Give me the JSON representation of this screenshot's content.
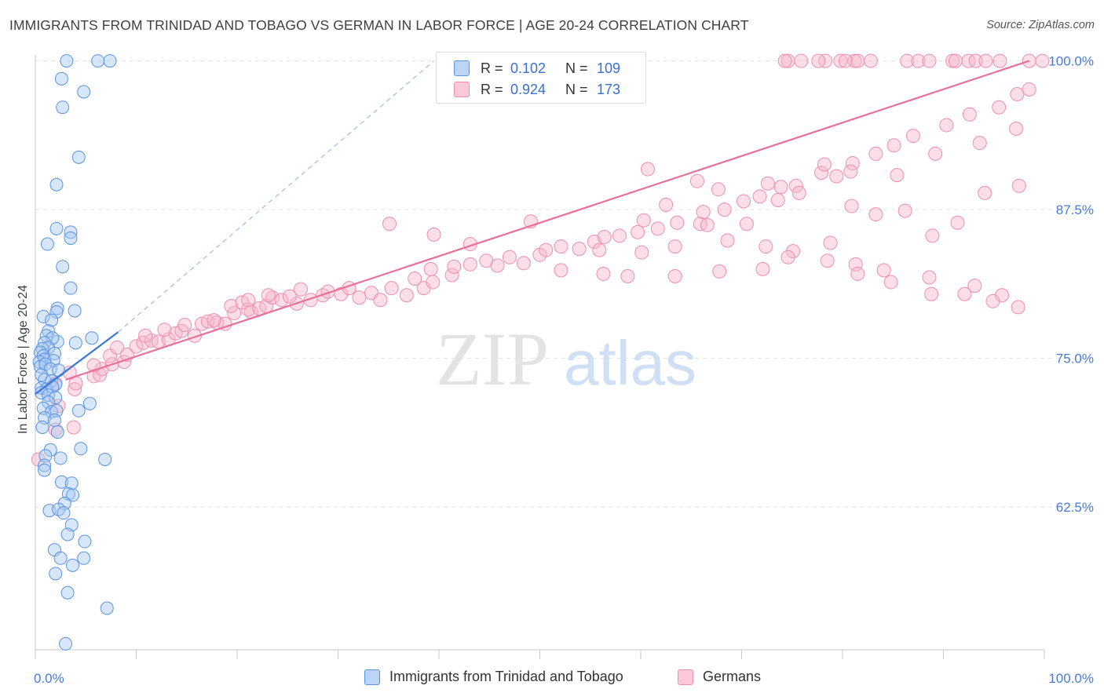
{
  "title": "IMMIGRANTS FROM TRINIDAD AND TOBAGO VS GERMAN IN LABOR FORCE | AGE 20-24 CORRELATION CHART",
  "source": "Source: ZipAtlas.com",
  "watermark": {
    "zip": "ZIP",
    "atlas": "atlas"
  },
  "legend": {
    "rows": [
      {
        "r_label": "R =",
        "r_value": "0.102",
        "n_label": "N =",
        "n_value": "109",
        "color": "#a9c8f5"
      },
      {
        "r_label": "R =",
        "r_value": "0.924",
        "n_label": "N =",
        "n_value": "173",
        "color": "#f7b6ca"
      }
    ]
  },
  "bottom_legend": {
    "items": [
      {
        "label": "Immigrants from Trinidad and Tobago",
        "color": "#a9c8f5"
      },
      {
        "label": "Germans",
        "color": "#f7b6ca"
      }
    ]
  },
  "colors": {
    "blue": "#5b93e0",
    "blue_line": "#3a78d6",
    "pink": "#ee8fb0",
    "pink_line": "#e8709a",
    "tick": "#4a7bd0"
  },
  "chart_data": {
    "type": "scatter",
    "xlabel": "",
    "ylabel": "In Labor Force | Age 20-24",
    "xlim": [
      0,
      100
    ],
    "ylim": [
      50.5,
      100.5
    ],
    "x_tick_labels": [
      {
        "x": 0,
        "label": "0.0%"
      },
      {
        "x": 100,
        "label": "100.0%"
      }
    ],
    "y_tick_labels": [
      {
        "y": 62.5,
        "label": "62.5%"
      },
      {
        "y": 75.0,
        "label": "75.0%"
      },
      {
        "y": 87.5,
        "label": "87.5%"
      },
      {
        "y": 100.0,
        "label": "100.0%"
      }
    ],
    "grid": true,
    "series": [
      {
        "name": "Immigrants from Trinidad and Tobago",
        "color": "#5b93e0",
        "trend": {
          "x": [
            0,
            8.2
          ],
          "y": [
            72.0,
            77.2
          ],
          "dashed_extension_to": [
            39.5,
            100
          ]
        },
        "points": [
          [
            3.1,
            100
          ],
          [
            6.2,
            100
          ],
          [
            7.4,
            100
          ],
          [
            2.6,
            98.5
          ],
          [
            4.8,
            97.4
          ],
          [
            2.7,
            96.1
          ],
          [
            4.3,
            91.9
          ],
          [
            2.1,
            89.6
          ],
          [
            2.1,
            85.9
          ],
          [
            3.5,
            85.6
          ],
          [
            1.2,
            84.6
          ],
          [
            3.5,
            85.1
          ],
          [
            2.7,
            82.7
          ],
          [
            3.5,
            80.9
          ],
          [
            2.2,
            79.2
          ],
          [
            2.1,
            78.9
          ],
          [
            3.9,
            79.0
          ],
          [
            0.8,
            78.5
          ],
          [
            1.6,
            78.2
          ],
          [
            1.3,
            77.3
          ],
          [
            1.1,
            76.9
          ],
          [
            5.6,
            76.7
          ],
          [
            4.0,
            76.3
          ],
          [
            2.2,
            76.4
          ],
          [
            1.7,
            76.7
          ],
          [
            0.9,
            76.3
          ],
          [
            1.3,
            75.9
          ],
          [
            0.7,
            75.8
          ],
          [
            0.5,
            75.5
          ],
          [
            0.8,
            75.2
          ],
          [
            1.9,
            75.4
          ],
          [
            0.9,
            74.9
          ],
          [
            1.8,
            74.8
          ],
          [
            0.4,
            74.7
          ],
          [
            0.5,
            74.3
          ],
          [
            1.0,
            74.5
          ],
          [
            1.5,
            74.1
          ],
          [
            2.3,
            74.0
          ],
          [
            0.6,
            73.6
          ],
          [
            0.9,
            73.2
          ],
          [
            1.6,
            73.1
          ],
          [
            2.0,
            72.8
          ],
          [
            0.6,
            72.5
          ],
          [
            1.1,
            72.4
          ],
          [
            1.7,
            72.6
          ],
          [
            0.6,
            72.1
          ],
          [
            1.3,
            71.9
          ],
          [
            2.0,
            71.7
          ],
          [
            5.4,
            71.2
          ],
          [
            1.3,
            71.3
          ],
          [
            0.8,
            70.8
          ],
          [
            1.6,
            70.5
          ],
          [
            2.1,
            70.6
          ],
          [
            4.3,
            70.6
          ],
          [
            0.9,
            70.0
          ],
          [
            1.9,
            69.8
          ],
          [
            0.7,
            69.2
          ],
          [
            2.2,
            68.8
          ],
          [
            1.5,
            67.3
          ],
          [
            4.5,
            67.4
          ],
          [
            1.0,
            66.8
          ],
          [
            2.5,
            66.6
          ],
          [
            6.9,
            66.5
          ],
          [
            0.9,
            66.0
          ],
          [
            0.9,
            65.6
          ],
          [
            2.6,
            64.6
          ],
          [
            3.6,
            64.5
          ],
          [
            3.3,
            63.6
          ],
          [
            3.7,
            63.5
          ],
          [
            2.9,
            62.8
          ],
          [
            1.4,
            62.2
          ],
          [
            2.3,
            62.3
          ],
          [
            2.8,
            62.0
          ],
          [
            3.6,
            61.0
          ],
          [
            3.2,
            60.2
          ],
          [
            4.9,
            59.6
          ],
          [
            1.9,
            58.9
          ],
          [
            2.5,
            58.2
          ],
          [
            4.8,
            58.2
          ],
          [
            3.7,
            57.6
          ],
          [
            2.0,
            56.9
          ],
          [
            3.2,
            55.3
          ],
          [
            7.1,
            54.0
          ],
          [
            3.0,
            51.0
          ]
        ]
      },
      {
        "name": "Germans",
        "color": "#ee8fb0",
        "trend": {
          "x": [
            3.0,
            98.5
          ],
          "y": [
            73.2,
            100.0
          ]
        },
        "points": [
          [
            0.3,
            66.5
          ],
          [
            2.0,
            69.0
          ],
          [
            3.8,
            69.2
          ],
          [
            2.3,
            71.0
          ],
          [
            2.0,
            72.9
          ],
          [
            3.9,
            72.4
          ],
          [
            4.0,
            72.9
          ],
          [
            3.4,
            73.8
          ],
          [
            5.8,
            73.5
          ],
          [
            6.4,
            73.6
          ],
          [
            6.6,
            74.1
          ],
          [
            7.6,
            74.5
          ],
          [
            8.8,
            74.7
          ],
          [
            5.8,
            74.4
          ],
          [
            7.4,
            75.2
          ],
          [
            9.1,
            75.3
          ],
          [
            8.1,
            75.9
          ],
          [
            10.0,
            76.0
          ],
          [
            10.7,
            76.3
          ],
          [
            11.5,
            76.5
          ],
          [
            10.9,
            76.9
          ],
          [
            12.2,
            76.4
          ],
          [
            13.2,
            76.6
          ],
          [
            13.9,
            77.1
          ],
          [
            12.8,
            77.4
          ],
          [
            14.5,
            77.3
          ],
          [
            15.8,
            76.9
          ],
          [
            14.8,
            77.8
          ],
          [
            16.5,
            77.9
          ],
          [
            17.1,
            78.1
          ],
          [
            18.0,
            78.0
          ],
          [
            18.8,
            77.9
          ],
          [
            17.7,
            78.2
          ],
          [
            19.7,
            78.8
          ],
          [
            21.4,
            78.9
          ],
          [
            19.4,
            79.4
          ],
          [
            21.1,
            79.1
          ],
          [
            22.2,
            79.2
          ],
          [
            20.5,
            79.7
          ],
          [
            21.1,
            79.9
          ],
          [
            22.9,
            79.4
          ],
          [
            23.5,
            80.1
          ],
          [
            24.4,
            79.9
          ],
          [
            25.9,
            79.6
          ],
          [
            23.1,
            80.3
          ],
          [
            25.2,
            80.2
          ],
          [
            27.3,
            79.9
          ],
          [
            28.5,
            80.3
          ],
          [
            26.3,
            80.8
          ],
          [
            29.0,
            80.6
          ],
          [
            30.3,
            80.4
          ],
          [
            31.1,
            80.9
          ],
          [
            32.1,
            80.1
          ],
          [
            33.3,
            80.5
          ],
          [
            34.2,
            79.9
          ],
          [
            35.3,
            80.9
          ],
          [
            36.8,
            80.3
          ],
          [
            38.5,
            80.9
          ],
          [
            37.6,
            81.7
          ],
          [
            39.4,
            81.4
          ],
          [
            41.3,
            82.0
          ],
          [
            39.2,
            82.5
          ],
          [
            41.5,
            82.7
          ],
          [
            43.1,
            82.9
          ],
          [
            44.7,
            83.2
          ],
          [
            45.8,
            82.8
          ],
          [
            47.0,
            83.5
          ],
          [
            48.4,
            83.0
          ],
          [
            50.0,
            83.7
          ],
          [
            50.6,
            84.1
          ],
          [
            52.1,
            84.4
          ],
          [
            53.9,
            84.2
          ],
          [
            55.4,
            84.8
          ],
          [
            56.4,
            85.2
          ],
          [
            57.9,
            85.3
          ],
          [
            59.7,
            85.6
          ],
          [
            61.7,
            85.9
          ],
          [
            63.6,
            86.4
          ],
          [
            65.9,
            86.3
          ],
          [
            66.2,
            87.3
          ],
          [
            68.3,
            87.5
          ],
          [
            70.2,
            88.2
          ],
          [
            71.8,
            88.6
          ],
          [
            73.9,
            89.4
          ],
          [
            75.4,
            89.5
          ],
          [
            77.9,
            90.6
          ],
          [
            79.4,
            90.3
          ],
          [
            81.0,
            91.4
          ],
          [
            83.3,
            92.2
          ],
          [
            85.1,
            92.9
          ],
          [
            87.0,
            93.7
          ],
          [
            90.3,
            94.6
          ],
          [
            92.6,
            95.5
          ],
          [
            95.5,
            96.1
          ],
          [
            97.3,
            97.2
          ],
          [
            98.5,
            97.6
          ],
          [
            98.5,
            100
          ],
          [
            92.5,
            100
          ],
          [
            82.8,
            100
          ],
          [
            81.2,
            100
          ],
          [
            78.3,
            100
          ],
          [
            74.6,
            100
          ],
          [
            74.3,
            100
          ],
          [
            77.6,
            100
          ],
          [
            79.8,
            100
          ],
          [
            80.3,
            100
          ],
          [
            81.5,
            100
          ],
          [
            86.4,
            100
          ],
          [
            87.5,
            100
          ],
          [
            88.6,
            100
          ],
          [
            90.9,
            100
          ],
          [
            91.2,
            100
          ],
          [
            93.2,
            100
          ],
          [
            94.2,
            100
          ],
          [
            95.6,
            100
          ],
          [
            99.8,
            100
          ],
          [
            75.9,
            100
          ],
          [
            35.1,
            86.3
          ],
          [
            39.5,
            85.4
          ],
          [
            43.1,
            84.6
          ],
          [
            49.1,
            86.5
          ],
          [
            55.9,
            84.1
          ],
          [
            60.3,
            86.6
          ],
          [
            62.5,
            87.9
          ],
          [
            65.6,
            89.9
          ],
          [
            67.7,
            89.2
          ],
          [
            72.6,
            89.7
          ],
          [
            78.2,
            91.3
          ],
          [
            80.8,
            90.7
          ],
          [
            85.4,
            90.4
          ],
          [
            89.2,
            92.2
          ],
          [
            93.6,
            93.1
          ],
          [
            97.2,
            94.3
          ],
          [
            60.7,
            90.9
          ],
          [
            66.6,
            86.2
          ],
          [
            70.5,
            86.3
          ],
          [
            73.6,
            88.3
          ],
          [
            75.7,
            88.9
          ],
          [
            80.9,
            87.8
          ],
          [
            83.3,
            87.1
          ],
          [
            86.2,
            87.4
          ],
          [
            88.9,
            85.3
          ],
          [
            91.4,
            86.4
          ],
          [
            94.1,
            88.9
          ],
          [
            97.5,
            89.5
          ],
          [
            60.1,
            83.9
          ],
          [
            63.4,
            84.4
          ],
          [
            68.6,
            84.9
          ],
          [
            72.4,
            84.4
          ],
          [
            75.1,
            84.0
          ],
          [
            78.8,
            84.7
          ],
          [
            81.3,
            82.9
          ],
          [
            84.1,
            82.4
          ],
          [
            88.6,
            81.8
          ],
          [
            93.1,
            81.1
          ],
          [
            95.8,
            80.3
          ],
          [
            52.1,
            82.4
          ],
          [
            56.3,
            82.1
          ],
          [
            58.7,
            81.9
          ],
          [
            63.4,
            81.9
          ],
          [
            67.8,
            82.3
          ],
          [
            72.1,
            82.5
          ],
          [
            74.6,
            83.5
          ],
          [
            78.5,
            83.2
          ],
          [
            81.5,
            82.1
          ],
          [
            84.8,
            81.4
          ],
          [
            88.8,
            80.4
          ],
          [
            92.1,
            80.4
          ],
          [
            94.9,
            79.8
          ],
          [
            97.4,
            79.3
          ]
        ]
      }
    ]
  }
}
